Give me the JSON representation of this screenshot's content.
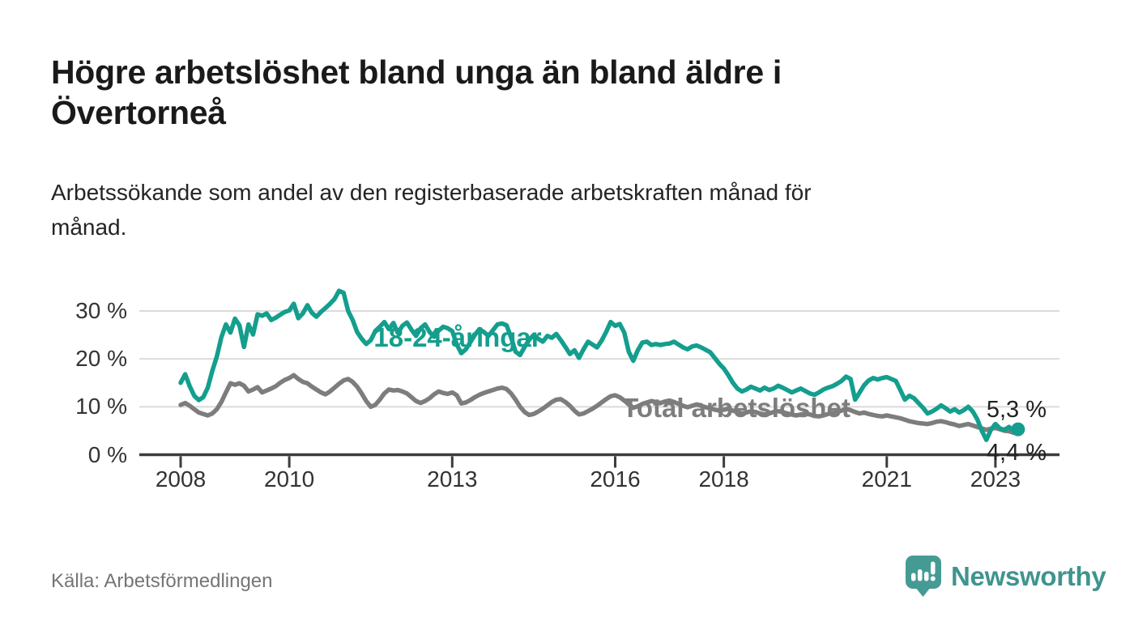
{
  "title": {
    "lines": [
      "Högre arbetslöshet bland unga än bland äldre i",
      "Övertorneå"
    ]
  },
  "subtitle": {
    "lines": [
      "Arbetssökande som andel av den registerbaserade arbetskraften månad för",
      "månad."
    ]
  },
  "chart_data": {
    "type": "line",
    "title": "Högre arbetslöshet bland unga än bland äldre i Övertorneå",
    "subtitle": "Arbetssökande som andel av den registerbaserade arbetskraften månad för månad.",
    "unit": "%",
    "grid": "horizontal",
    "legend_position": "inline-labels",
    "x": {
      "start_year": 2008,
      "start_month": 1,
      "end_year": 2023,
      "end_month": 6,
      "interval": "monthly"
    },
    "x_ticks": [
      {
        "label": "2008",
        "year": 2008
      },
      {
        "label": "2010",
        "year": 2010
      },
      {
        "label": "2013",
        "year": 2013
      },
      {
        "label": "2016",
        "year": 2016
      },
      {
        "label": "2018",
        "year": 2018
      },
      {
        "label": "2021",
        "year": 2021
      },
      {
        "label": "2023",
        "year": 2023
      }
    ],
    "y_ticks": [
      {
        "label": "0 %",
        "value": 0
      },
      {
        "label": "10 %",
        "value": 10
      },
      {
        "label": "20 %",
        "value": 20
      },
      {
        "label": "30 %",
        "value": 30
      }
    ],
    "ylim": [
      0,
      35
    ],
    "series": [
      {
        "name": "18-24-åringar",
        "color": "#149e8d",
        "end_label": "5,3 %",
        "end_value": 5.3,
        "values": [
          15.0,
          16.8,
          14.3,
          12.3,
          11.4,
          12.0,
          14.0,
          17.5,
          20.5,
          24.5,
          27.2,
          25.5,
          28.4,
          27.0,
          22.5,
          27.2,
          25.1,
          29.3,
          29.0,
          29.5,
          28.1,
          28.6,
          29.2,
          29.8,
          30.1,
          31.5,
          28.5,
          29.5,
          31.2,
          29.6,
          28.8,
          29.8,
          30.6,
          31.5,
          32.5,
          34.2,
          33.8,
          30.0,
          28.1,
          25.6,
          24.2,
          23.1,
          23.9,
          25.8,
          26.7,
          27.7,
          26.2,
          27.5,
          25.4,
          26.9,
          27.6,
          26.1,
          24.8,
          26.4,
          27.2,
          25.6,
          24.6,
          25.9,
          26.7,
          26.4,
          25.8,
          23.0,
          21.2,
          22.0,
          23.5,
          25.0,
          26.2,
          25.6,
          24.8,
          26.0,
          27.2,
          27.4,
          27.0,
          24.5,
          21.5,
          20.8,
          22.5,
          24.0,
          25.0,
          24.2,
          23.6,
          24.8,
          24.4,
          25.2,
          23.9,
          22.5,
          21.0,
          21.8,
          20.2,
          22.0,
          23.6,
          23.0,
          22.4,
          23.8,
          25.6,
          27.7,
          26.9,
          27.3,
          25.5,
          21.5,
          19.6,
          21.8,
          23.4,
          23.6,
          22.9,
          23.1,
          22.9,
          23.1,
          23.2,
          23.6,
          23.0,
          22.4,
          22.0,
          22.6,
          22.8,
          22.4,
          21.9,
          21.4,
          20.2,
          19.0,
          18.0,
          16.6,
          15.0,
          13.8,
          13.2,
          13.6,
          14.2,
          13.8,
          13.4,
          14.0,
          13.5,
          13.8,
          14.4,
          14.0,
          13.5,
          13.0,
          13.4,
          13.8,
          13.3,
          12.8,
          12.5,
          13.0,
          13.6,
          14.0,
          14.3,
          14.8,
          15.4,
          16.3,
          15.8,
          11.5,
          13.0,
          14.5,
          15.5,
          16.0,
          15.7,
          16.0,
          16.2,
          15.8,
          15.4,
          13.5,
          11.5,
          12.3,
          11.8,
          10.8,
          9.8,
          8.6,
          9.0,
          9.6,
          10.3,
          9.7,
          9.0,
          9.5,
          8.8,
          9.3,
          10.0,
          9.0,
          7.4,
          5.0,
          3.1,
          5.2,
          6.4,
          5.5,
          5.2,
          5.8,
          5.0,
          5.3
        ]
      },
      {
        "name": "Total arbetslöshet",
        "color": "#7d7d7d",
        "end_label": "4,4 %",
        "end_value": 4.4,
        "values": [
          10.4,
          10.8,
          10.2,
          9.5,
          8.8,
          8.5,
          8.2,
          8.6,
          9.5,
          11.0,
          13.0,
          14.9,
          14.6,
          14.9,
          14.4,
          13.2,
          13.6,
          14.1,
          13.0,
          13.4,
          13.8,
          14.3,
          15.0,
          15.6,
          16.0,
          16.6,
          15.8,
          15.2,
          14.9,
          14.2,
          13.6,
          13.0,
          12.6,
          13.2,
          14.0,
          14.8,
          15.5,
          15.8,
          15.2,
          14.2,
          12.8,
          11.2,
          10.0,
          10.4,
          11.5,
          12.8,
          13.6,
          13.4,
          13.5,
          13.2,
          12.8,
          12.0,
          11.2,
          10.8,
          11.2,
          11.8,
          12.6,
          13.2,
          12.9,
          12.7,
          13.0,
          12.4,
          10.7,
          10.9,
          11.4,
          12.0,
          12.5,
          12.9,
          13.2,
          13.5,
          13.8,
          14.0,
          13.7,
          12.8,
          11.5,
          10.0,
          8.9,
          8.3,
          8.5,
          9.0,
          9.6,
          10.3,
          11.0,
          11.5,
          11.6,
          11.0,
          10.2,
          9.2,
          8.4,
          8.6,
          9.1,
          9.6,
          10.2,
          10.9,
          11.6,
          12.2,
          12.4,
          12.0,
          11.3,
          10.5,
          9.8,
          10.1,
          10.6,
          10.9,
          11.2,
          11.0,
          10.8,
          11.1,
          11.3,
          11.0,
          10.6,
          10.2,
          9.9,
          10.2,
          10.5,
          10.2,
          9.9,
          9.7,
          9.4,
          9.2,
          9.4,
          9.6,
          9.2,
          8.9,
          8.6,
          8.8,
          9.1,
          8.9,
          8.6,
          8.4,
          8.6,
          8.9,
          9.1,
          8.9,
          8.6,
          8.4,
          8.2,
          8.4,
          8.6,
          8.4,
          8.1,
          8.0,
          8.2,
          8.5,
          8.7,
          8.9,
          9.2,
          9.6,
          9.3,
          8.9,
          8.6,
          8.8,
          8.5,
          8.3,
          8.1,
          8.0,
          8.2,
          8.0,
          7.8,
          7.6,
          7.3,
          7.0,
          6.8,
          6.6,
          6.5,
          6.4,
          6.6,
          6.9,
          7.0,
          6.8,
          6.5,
          6.3,
          6.0,
          6.2,
          6.4,
          6.1,
          5.8,
          5.5,
          5.2,
          5.4,
          5.6,
          5.3,
          5.0,
          4.9,
          4.6,
          4.4
        ]
      }
    ]
  },
  "footer": {
    "source": "Källa: Arbetsförmedlingen",
    "brand": "Newsworthy"
  },
  "colors": {
    "accent_teal": "#149e8d",
    "series_gray": "#7d7d7d",
    "logo_teal": "#459b94",
    "grid": "#dbdbdb",
    "axis": "#3c3c3c",
    "title_text": "#1a1a1a",
    "body_text": "#242424",
    "muted_text": "#757575"
  }
}
